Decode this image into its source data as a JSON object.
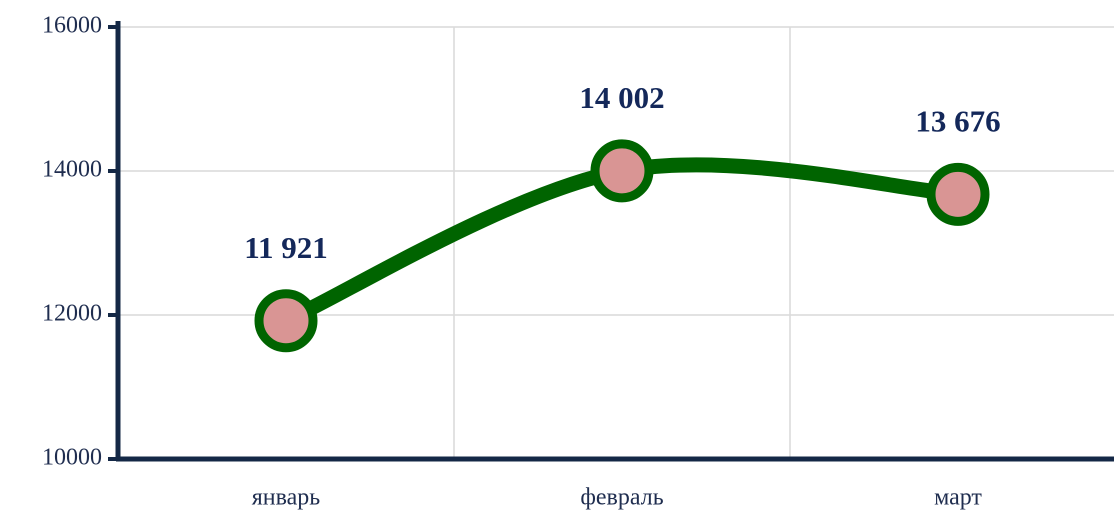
{
  "chart_data": {
    "type": "line",
    "categories": [
      "январь",
      "февраль",
      "март"
    ],
    "series": [
      {
        "color": "#006400",
        "marker_color": "#d99594",
        "values": [
          11921,
          14002,
          13676
        ],
        "value_labels": [
          "11 921",
          "14 002",
          "13 676"
        ]
      }
    ],
    "ylim": [
      10000,
      16000
    ],
    "yticks": [
      10000,
      12000,
      14000,
      16000
    ],
    "grid": true,
    "smooth": true
  }
}
